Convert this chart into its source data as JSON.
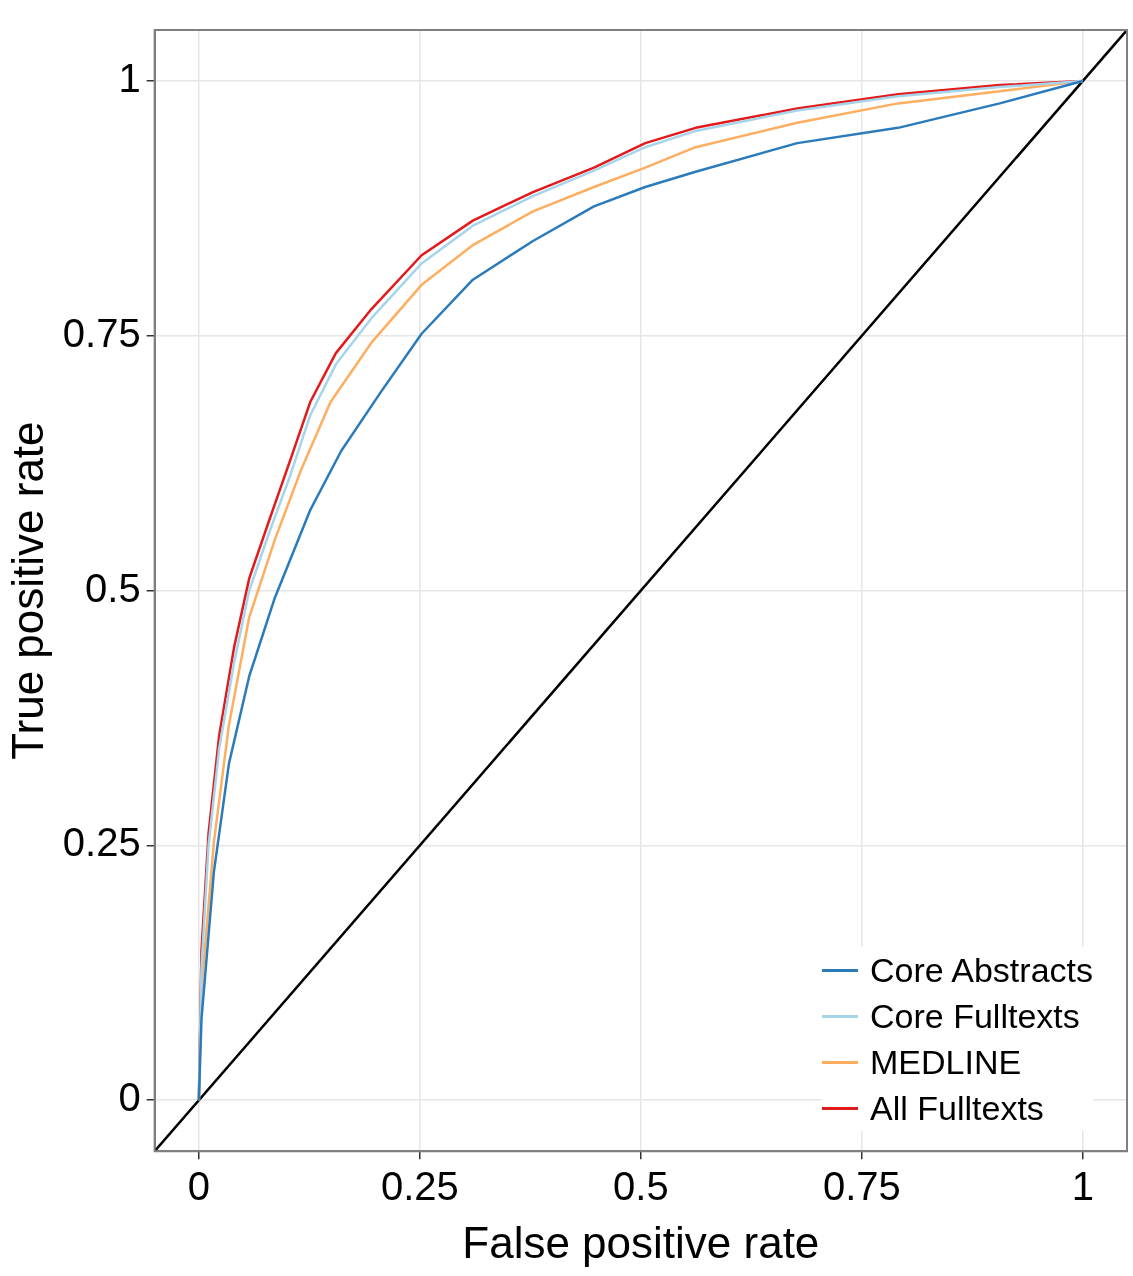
{
  "chart_data": {
    "type": "line",
    "xlabel": "False positive rate",
    "ylabel": "True positive rate",
    "xlim": [
      -0.05,
      1.05
    ],
    "ylim": [
      -0.05,
      1.05
    ],
    "xticks": [
      0,
      0.25,
      {
        "value": 0.5,
        "label": "0.5"
      },
      0.75,
      1
    ],
    "yticks": [
      0,
      0.25,
      {
        "value": 0.5,
        "label": "0.5"
      },
      0.75,
      1
    ],
    "grid": true,
    "legend": "bottom right",
    "marker": "none",
    "line_style": "solid",
    "series": [
      {
        "name": "Core Abstracts",
        "color": "#2b7bba",
        "x": [
          0,
          0.003,
          0.017,
          0.034,
          0.057,
          0.086,
          0.126,
          0.161,
          0.206,
          0.252,
          0.31,
          0.378,
          0.447,
          0.505,
          0.562,
          0.677,
          0.791,
          0.906,
          1
        ],
        "values": [
          0,
          0.08,
          0.224,
          0.33,
          0.416,
          0.493,
          0.579,
          0.637,
          0.695,
          0.752,
          0.805,
          0.843,
          0.877,
          0.896,
          0.911,
          0.939,
          0.954,
          0.978,
          1
        ]
      },
      {
        "name": "Core Fulltexts",
        "color": "#a6d5ea",
        "x": [
          0,
          0.003,
          0.011,
          0.023,
          0.04,
          0.057,
          0.08,
          0.103,
          0.126,
          0.155,
          0.195,
          0.252,
          0.31,
          0.378,
          0.447,
          0.505,
          0.562,
          0.677,
          0.791,
          0.906,
          1
        ],
        "values": [
          0,
          0.13,
          0.25,
          0.345,
          0.43,
          0.5,
          0.558,
          0.612,
          0.672,
          0.722,
          0.767,
          0.821,
          0.858,
          0.887,
          0.912,
          0.935,
          0.951,
          0.971,
          0.985,
          0.994,
          1
        ]
      },
      {
        "name": "MEDLINE",
        "color": "#fdae61",
        "x": [
          0,
          0.003,
          0.017,
          0.034,
          0.057,
          0.086,
          0.115,
          0.149,
          0.195,
          0.252,
          0.31,
          0.378,
          0.447,
          0.505,
          0.562,
          0.677,
          0.791,
          0.906,
          1
        ],
        "values": [
          0,
          0.109,
          0.253,
          0.368,
          0.474,
          0.55,
          0.617,
          0.685,
          0.743,
          0.8,
          0.839,
          0.872,
          0.896,
          0.915,
          0.935,
          0.959,
          0.978,
          0.99,
          1
        ]
      },
      {
        "name": "All Fulltexts",
        "color": "#e31a1c",
        "x": [
          0,
          0.003,
          0.011,
          0.023,
          0.04,
          0.057,
          0.08,
          0.103,
          0.126,
          0.155,
          0.195,
          0.252,
          0.31,
          0.378,
          0.447,
          0.505,
          0.562,
          0.677,
          0.791,
          0.906,
          1
        ],
        "values": [
          0,
          0.147,
          0.262,
          0.358,
          0.445,
          0.512,
          0.57,
          0.627,
          0.685,
          0.733,
          0.776,
          0.829,
          0.863,
          0.891,
          0.915,
          0.939,
          0.954,
          0.973,
          0.987,
          0.996,
          1
        ]
      },
      {
        "color": "#000000",
        "x": [
          -0.05,
          1.05
        ],
        "values": [
          -0.05,
          1.05
        ]
      }
    ]
  }
}
